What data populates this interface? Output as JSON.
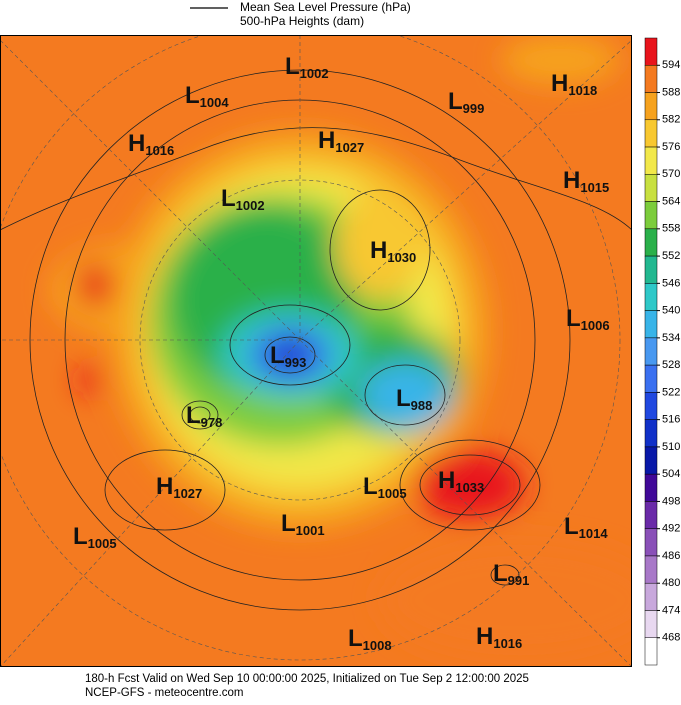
{
  "legend": {
    "line_label": "Mean Sea Level Pressure (hPa)",
    "fill_label": "500-hPa Heights (dam)"
  },
  "colorbar": {
    "ticks": [
      594,
      588,
      582,
      576,
      570,
      564,
      558,
      552,
      546,
      540,
      534,
      528,
      522,
      516,
      510,
      504,
      498,
      492,
      486,
      480,
      474,
      468
    ],
    "colors": [
      "#e8141c",
      "#f47a20",
      "#f6a21e",
      "#f8c830",
      "#f2e84a",
      "#c8e040",
      "#7ccc3c",
      "#2ab04a",
      "#22b890",
      "#2ec8c8",
      "#38b4e8",
      "#4898f0",
      "#3a70f0",
      "#2048e0",
      "#1030c8",
      "#0818a8",
      "#400898",
      "#6a2aa8",
      "#8a50b8",
      "#a878c8",
      "#c8a8dc",
      "#e8d8f0"
    ]
  },
  "centers": [
    {
      "type": "L",
      "value": 1002
    },
    {
      "type": "L",
      "value": 1004
    },
    {
      "type": "L",
      "value": 999
    },
    {
      "type": "H",
      "value": 1018
    },
    {
      "type": "H",
      "value": 1016
    },
    {
      "type": "H",
      "value": 1027
    },
    {
      "type": "H",
      "value": 1015
    },
    {
      "type": "L",
      "value": 1002
    },
    {
      "type": "H",
      "value": 1030
    },
    {
      "type": "L",
      "value": 1006
    },
    {
      "type": "L",
      "value": 993
    },
    {
      "type": "L",
      "value": 988
    },
    {
      "type": "L",
      "value": 978
    },
    {
      "type": "H",
      "value": 1027
    },
    {
      "type": "L",
      "value": 1005
    },
    {
      "type": "H",
      "value": 1033
    },
    {
      "type": "L",
      "value": 1001
    },
    {
      "type": "L",
      "value": 1005
    },
    {
      "type": "L",
      "value": 1014
    },
    {
      "type": "L",
      "value": 991
    },
    {
      "type": "L",
      "value": 1008
    },
    {
      "type": "H",
      "value": 1016
    }
  ],
  "footer": {
    "line1": "180-h Fcst Valid on Wed Sep 10 00:00:00 2025, Initialized on Tue Sep  2 12:00:00 2025",
    "line2": "NCEP-GFS  - meteocentre.com"
  }
}
